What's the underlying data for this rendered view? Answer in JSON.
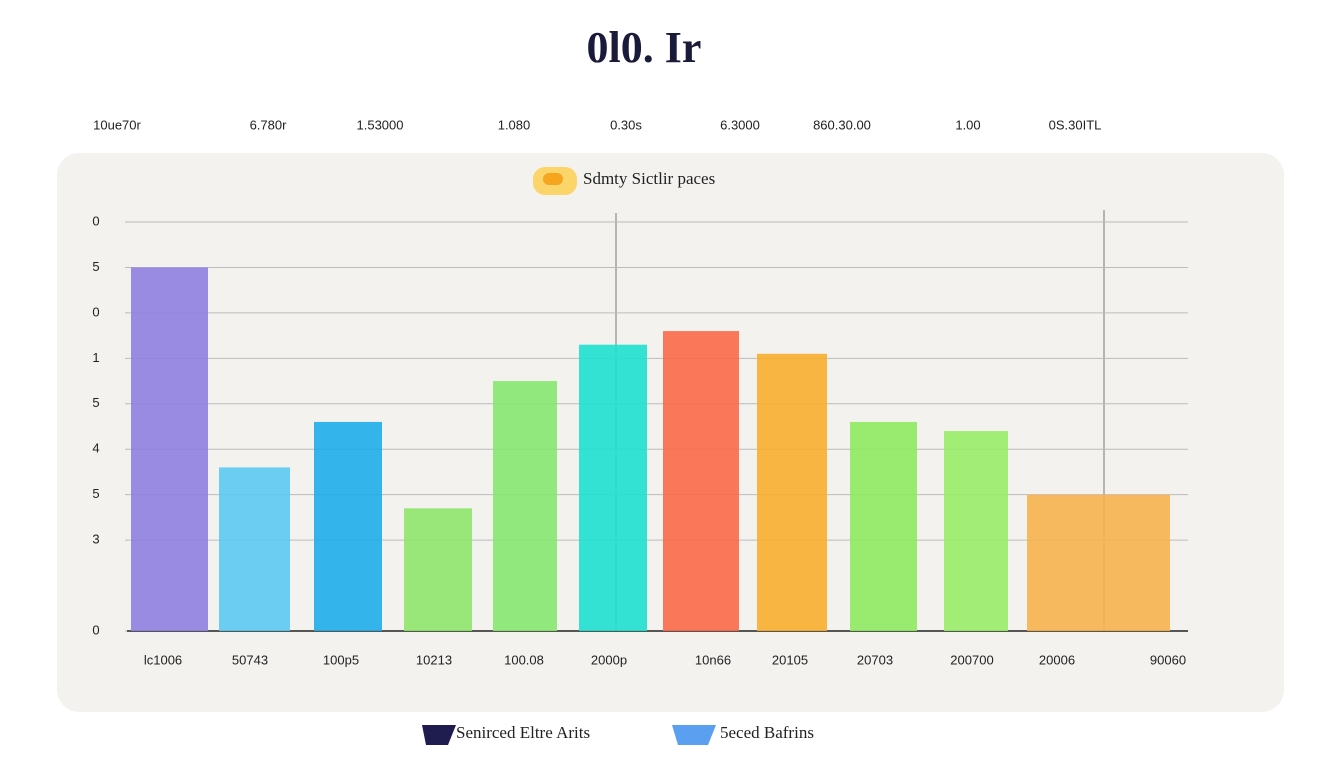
{
  "chart_data": {
    "type": "bar",
    "title": "0l0. Ir",
    "header_labels": [
      "10ue70r",
      "6.780r",
      "1.53000",
      "1.080",
      "0.30s",
      "6.3000",
      "860.30.00",
      "1.00",
      "0S.30ITL"
    ],
    "series_label": "Sdmty Sictlir paces",
    "categories": [
      "lc1006",
      "50743",
      "100p5",
      "10213",
      "100.08",
      "2000p",
      "10n66",
      "20105",
      "20703",
      "200700",
      "20006",
      "90060"
    ],
    "values": [
      8.0,
      3.6,
      4.6,
      2.7,
      5.5,
      6.3,
      6.6,
      6.1,
      4.6,
      4.4,
      3.0,
      null
    ],
    "colors": [
      "#8f7fe0",
      "#5cc9f2",
      "#1eaeea",
      "#8ee66a",
      "#86e870",
      "#1fe0d0",
      "#fb6a48",
      "#f9ae2e",
      "#8fea62",
      "#98ec68",
      "#f6b24c",
      "#f6b24c"
    ],
    "ylim": [
      0,
      9
    ],
    "yticks": [
      0,
      {
        "value": 2,
        "label": "3"
      },
      {
        "value": 3,
        "label": "5"
      },
      4,
      5,
      {
        "value": 6,
        "label": "1"
      },
      {
        "value": 7,
        "label": "0"
      },
      {
        "value": 8,
        "label": "5"
      },
      {
        "value": 9,
        "label": "0"
      }
    ],
    "grid": true,
    "legend": [
      {
        "name": "Senirced Eltre Arits",
        "color": "#1f1d4f"
      },
      {
        "name": "5eced Bafrins",
        "color": "#5a9ff0"
      }
    ]
  }
}
